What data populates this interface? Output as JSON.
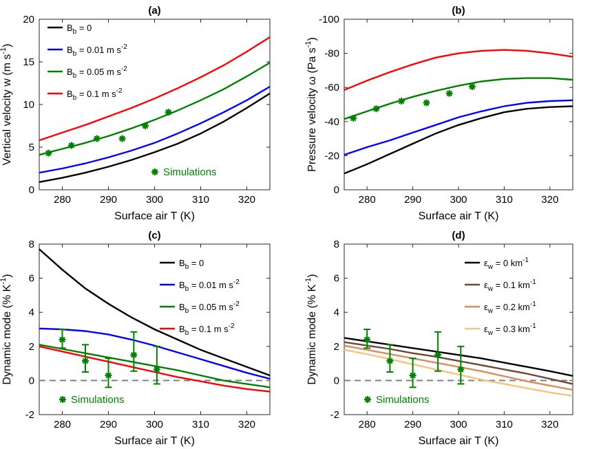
{
  "chart_data": [
    {
      "panel": "(a)",
      "type": "line",
      "xlabel": "Surface air T (K)",
      "ylabel": "Vertical velocity w (m s",
      "ylabel_sup": "-1",
      "ylabel_end": ")",
      "xlim": [
        275,
        325
      ],
      "ylim": [
        0,
        20
      ],
      "reverse_y": false,
      "xticks": [
        "280",
        "290",
        "300",
        "310",
        "320"
      ],
      "yticks": [
        "0",
        "5",
        "10",
        "15",
        "20"
      ],
      "legend_pos": "top-left",
      "series": [
        {
          "name": "B",
          "sub": "b",
          "rest": " = 0",
          "sup": "",
          "color": "#000000",
          "x": [
            275,
            280,
            285,
            290,
            295,
            300,
            305,
            310,
            315,
            320,
            325
          ],
          "y": [
            0.9,
            1.4,
            2.0,
            2.7,
            3.5,
            4.4,
            5.4,
            6.6,
            8.0,
            9.6,
            11.3
          ]
        },
        {
          "name": "B",
          "sub": "b",
          "rest": " = 0.01 m s",
          "sup": "-2",
          "color": "#0000ff",
          "x": [
            275,
            280,
            285,
            290,
            295,
            300,
            305,
            310,
            315,
            320,
            325
          ],
          "y": [
            2.0,
            2.5,
            3.1,
            3.8,
            4.6,
            5.5,
            6.6,
            7.8,
            9.1,
            10.5,
            12.1
          ]
        },
        {
          "name": "B",
          "sub": "b",
          "rest": " = 0.05 m s",
          "sup": "-2",
          "color": "#008000",
          "x": [
            275,
            280,
            285,
            290,
            295,
            300,
            305,
            310,
            315,
            320,
            325
          ],
          "y": [
            4.1,
            4.8,
            5.5,
            6.3,
            7.2,
            8.2,
            9.3,
            10.5,
            11.8,
            13.3,
            14.9
          ]
        },
        {
          "name": "B",
          "sub": "b",
          "rest": " = 0.1 m s",
          "sup": "-2",
          "color": "#ff0000",
          "x": [
            275,
            280,
            285,
            290,
            295,
            300,
            305,
            310,
            315,
            320,
            325
          ],
          "y": [
            5.8,
            6.7,
            7.6,
            8.6,
            9.6,
            10.7,
            11.9,
            13.2,
            14.6,
            16.2,
            17.9
          ]
        }
      ],
      "simulations": {
        "label": "Simulations",
        "color": "#008000",
        "legend_pos": "bottom-center",
        "x": [
          277,
          282,
          287.5,
          293,
          298,
          303
        ],
        "y": [
          4.3,
          5.2,
          6.0,
          6.0,
          7.5,
          9.1
        ]
      }
    },
    {
      "panel": "(b)",
      "type": "line",
      "xlabel": "Surface air T (K)",
      "ylabel": "Pressure velocity ω (Pa s",
      "ylabel_sup": "-1",
      "ylabel_end": ")",
      "xlim": [
        275,
        325
      ],
      "ylim": [
        0,
        -100
      ],
      "reverse_y": true,
      "xticks": [
        "280",
        "290",
        "300",
        "310",
        "320"
      ],
      "yticks": [
        "0",
        "-20",
        "-40",
        "-60",
        "-80",
        "-100"
      ],
      "series": [
        {
          "name": "B_b = 0",
          "color": "#000000",
          "x": [
            275,
            280,
            285,
            290,
            295,
            300,
            305,
            310,
            315,
            320,
            325
          ],
          "y": [
            -9.5,
            -15,
            -21,
            -27,
            -33,
            -38,
            -42,
            -45.5,
            -47.5,
            -48.5,
            -49
          ]
        },
        {
          "name": "B_b = 0.01 m s-2",
          "color": "#0000ff",
          "x": [
            275,
            280,
            285,
            290,
            295,
            300,
            305,
            310,
            315,
            320,
            325
          ],
          "y": [
            -20.5,
            -25,
            -29,
            -33.5,
            -38,
            -42.5,
            -46,
            -49,
            -51,
            -52,
            -52.5
          ]
        },
        {
          "name": "B_b = 0.05 m s-2",
          "color": "#008000",
          "x": [
            275,
            280,
            285,
            290,
            295,
            300,
            305,
            310,
            315,
            320,
            325
          ],
          "y": [
            -41.5,
            -46,
            -50.5,
            -54.5,
            -58,
            -61,
            -63.5,
            -65,
            -65.5,
            -65.5,
            -64.5
          ]
        },
        {
          "name": "B_b = 0.1 m s-2",
          "color": "#ff0000",
          "x": [
            275,
            280,
            285,
            290,
            295,
            300,
            305,
            310,
            315,
            320,
            325
          ],
          "y": [
            -58.5,
            -64,
            -69,
            -73.5,
            -77.5,
            -80,
            -81.5,
            -82,
            -81.5,
            -80,
            -78
          ]
        }
      ],
      "simulations": {
        "label": "Simulations",
        "color": "#008000",
        "x": [
          277,
          282,
          287.5,
          293,
          298,
          303
        ],
        "y": [
          -42,
          -47.5,
          -52,
          -51,
          -56.5,
          -60.5
        ]
      }
    },
    {
      "panel": "(c)",
      "type": "line",
      "xlabel": "Surface air T (K)",
      "ylabel": "Dynamic mode (% K",
      "ylabel_sup": "-1",
      "ylabel_end": ")",
      "xlim": [
        275,
        325
      ],
      "ylim": [
        -2,
        8
      ],
      "reverse_y": false,
      "xticks": [
        "280",
        "290",
        "300",
        "310",
        "320"
      ],
      "yticks": [
        "-2",
        "0",
        "2",
        "4",
        "6",
        "8"
      ],
      "zero_line": true,
      "legend_pos": "top-right",
      "series": [
        {
          "name": "B",
          "sub": "b",
          "rest": " = 0",
          "sup": "",
          "color": "#000000",
          "x": [
            275,
            280,
            285,
            290,
            295,
            300,
            305,
            310,
            315,
            320,
            325
          ],
          "y": [
            7.7,
            6.5,
            5.4,
            4.5,
            3.7,
            3.0,
            2.4,
            1.8,
            1.3,
            0.8,
            0.3
          ]
        },
        {
          "name": "B",
          "sub": "b",
          "rest": " = 0.01 m s",
          "sup": "-2",
          "color": "#0000ff",
          "x": [
            275,
            280,
            285,
            290,
            295,
            300,
            305,
            310,
            315,
            320,
            325
          ],
          "y": [
            3.05,
            3.0,
            2.9,
            2.7,
            2.4,
            2.05,
            1.65,
            1.25,
            0.85,
            0.45,
            0.1
          ]
        },
        {
          "name": "B",
          "sub": "b",
          "rest": " = 0.05 m s",
          "sup": "-2",
          "color": "#008000",
          "x": [
            275,
            280,
            285,
            290,
            295,
            300,
            305,
            310,
            315,
            320,
            325
          ],
          "y": [
            2.1,
            1.85,
            1.6,
            1.35,
            1.1,
            0.85,
            0.6,
            0.3,
            0.0,
            -0.2,
            -0.4
          ]
        },
        {
          "name": "B",
          "sub": "b",
          "rest": " = 0.1 m s",
          "sup": "-2",
          "color": "#ff0000",
          "x": [
            275,
            280,
            285,
            290,
            295,
            300,
            305,
            310,
            315,
            320,
            325
          ],
          "y": [
            2.0,
            1.7,
            1.4,
            1.1,
            0.8,
            0.5,
            0.2,
            -0.05,
            -0.3,
            -0.5,
            -0.65
          ]
        }
      ],
      "simulations": {
        "label": "Simulations",
        "color": "#008000",
        "legend_pos": "bottom-left",
        "x": [
          280,
          285,
          290,
          295.5,
          300.5
        ],
        "y": [
          2.4,
          1.15,
          0.3,
          1.5,
          0.65
        ],
        "err_low": [
          1.9,
          0.5,
          -0.4,
          0.55,
          -0.2
        ],
        "err_high": [
          3.0,
          2.1,
          1.3,
          2.85,
          2.0
        ]
      }
    },
    {
      "panel": "(d)",
      "type": "line",
      "xlabel": "Surface air T (K)",
      "ylabel": "Dynamic mode (% K",
      "ylabel_sup": "-1",
      "ylabel_end": ")",
      "xlim": [
        275,
        325
      ],
      "ylim": [
        -2,
        8
      ],
      "reverse_y": false,
      "xticks": [
        "280",
        "290",
        "300",
        "310",
        "320"
      ],
      "yticks": [
        "-2",
        "0",
        "2",
        "4",
        "6",
        "8"
      ],
      "zero_line": true,
      "legend_pos": "top-right",
      "series": [
        {
          "name": "ε",
          "sub": "w",
          "rest": " = 0 km",
          "sup": "-1",
          "color": "#000000",
          "x": [
            275,
            280,
            285,
            290,
            295,
            300,
            305,
            310,
            315,
            320,
            325
          ],
          "y": [
            2.5,
            2.3,
            2.1,
            1.9,
            1.7,
            1.5,
            1.3,
            1.05,
            0.8,
            0.55,
            0.27
          ]
        },
        {
          "name": "ε",
          "sub": "w",
          "rest": " = 0.1 km",
          "sup": "-1",
          "color": "#6e4631",
          "x": [
            275,
            280,
            285,
            290,
            295,
            300,
            305,
            310,
            315,
            320,
            325
          ],
          "y": [
            2.25,
            2.05,
            1.85,
            1.6,
            1.4,
            1.15,
            0.9,
            0.65,
            0.4,
            0.1,
            -0.2
          ]
        },
        {
          "name": "ε",
          "sub": "w",
          "rest": " = 0.2 km",
          "sup": "-1",
          "color": "#d98b58",
          "x": [
            275,
            280,
            285,
            290,
            295,
            300,
            305,
            310,
            315,
            320,
            325
          ],
          "y": [
            2.05,
            1.8,
            1.55,
            1.3,
            1.05,
            0.8,
            0.55,
            0.25,
            -0.05,
            -0.3,
            -0.55
          ]
        },
        {
          "name": "ε",
          "sub": "w",
          "rest": " = 0.3 km",
          "sup": "-1",
          "color": "#f7c27a",
          "x": [
            275,
            280,
            285,
            290,
            295,
            300,
            305,
            310,
            315,
            320,
            325
          ],
          "y": [
            1.8,
            1.55,
            1.25,
            0.95,
            0.65,
            0.35,
            0.05,
            -0.2,
            -0.45,
            -0.7,
            -0.9
          ]
        }
      ],
      "simulations": {
        "label": "Simulations",
        "color": "#008000",
        "legend_pos": "bottom-left",
        "x": [
          280,
          285,
          290,
          295.5,
          300.5
        ],
        "y": [
          2.4,
          1.15,
          0.3,
          1.5,
          0.65
        ],
        "err_low": [
          1.9,
          0.5,
          -0.4,
          0.55,
          -0.2
        ],
        "err_high": [
          3.0,
          2.1,
          1.3,
          2.85,
          2.0
        ]
      }
    }
  ]
}
